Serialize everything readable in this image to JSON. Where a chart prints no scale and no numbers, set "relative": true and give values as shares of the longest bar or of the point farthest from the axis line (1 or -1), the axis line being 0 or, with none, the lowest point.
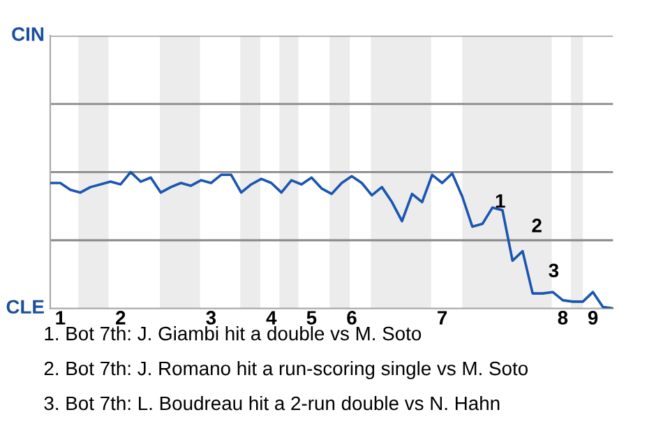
{
  "chart_data": {
    "type": "line",
    "relative": true,
    "categories": [
      null,
      "1",
      null,
      null,
      null,
      null,
      null,
      "2",
      null,
      null,
      null,
      null,
      null,
      null,
      null,
      null,
      "3",
      null,
      null,
      null,
      null,
      null,
      "4",
      null,
      null,
      null,
      "5",
      null,
      null,
      null,
      "6",
      null,
      null,
      null,
      null,
      null,
      null,
      null,
      null,
      "7",
      null,
      null,
      null,
      null,
      null,
      null,
      null,
      null,
      null,
      null,
      null,
      "8",
      null,
      null,
      "9",
      null,
      null
    ],
    "series": [
      {
        "color": "#1a56b0",
        "values": [
          0.92,
          0.92,
          0.87,
          0.85,
          0.89,
          0.91,
          0.93,
          0.91,
          1,
          0.93,
          0.96,
          0.85,
          0.89,
          0.92,
          0.9,
          0.94,
          0.92,
          0.98,
          0.98,
          0.85,
          0.91,
          0.95,
          0.92,
          0.85,
          0.94,
          0.91,
          0.96,
          0.88,
          0.84,
          0.92,
          0.97,
          0.92,
          0.83,
          0.89,
          0.78,
          0.64,
          0.84,
          0.78,
          0.98,
          0.92,
          0.99,
          0.82,
          0.6,
          0.62,
          0.74,
          0.72,
          0.35,
          0.42,
          0.11,
          0.11,
          0.12,
          0.06,
          0.05,
          0.05,
          0.12,
          0.01,
          0
        ]
      }
    ],
    "line_style": "solid",
    "ref_lines": [
      {
        "axis": "y",
        "value": 0.5,
        "color": "#888888"
      }
    ],
    "marker": "none",
    "annotations": [
      "CIN",
      "CLE",
      "1",
      "2",
      "3",
      "1. Bot 7th: J. Giambi hit a double vs M. Soto",
      "2. Bot 7th: J. Romano hit a run-scoring single vs M. Soto",
      "3. Bot 7th: L. Boudreau hit a 2-run double vs N. Hahn"
    ]
  }
}
